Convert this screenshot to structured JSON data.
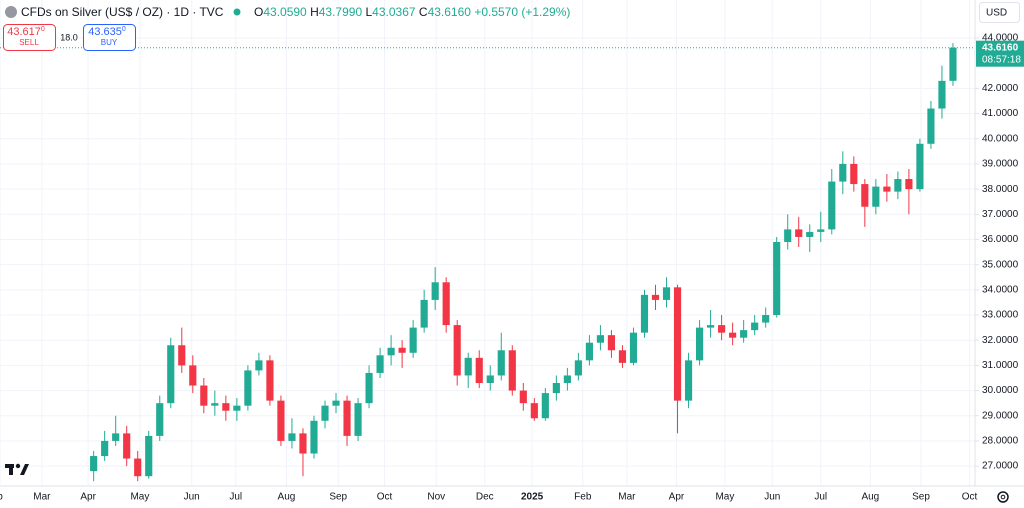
{
  "header": {
    "symbol": "CFDs on Silver (US$ / OZ) · 1D · TVC",
    "ohlc": [
      {
        "label": "O",
        "value": "43.0590"
      },
      {
        "label": "H",
        "value": "43.7990"
      },
      {
        "label": "L",
        "value": "43.0367"
      },
      {
        "label": "C",
        "value": "43.6160"
      }
    ],
    "change": "+0.5570 (+1.29%)",
    "sell": {
      "price": "43.617",
      "digit": "0",
      "label": "SELL"
    },
    "spread": "18.0",
    "buy": {
      "price": "43.635",
      "digit": "0",
      "label": "BUY"
    },
    "currency": "USD"
  },
  "chart_data": {
    "type": "candlestick",
    "up_color": "#22ab94",
    "down_color": "#f23645",
    "grid": true,
    "xlim": [
      -8.5,
      80
    ],
    "ylim": [
      26.21,
      45.51
    ],
    "xticks": [
      {
        "value": -8.5,
        "label": "b"
      },
      {
        "value": -4.7,
        "label": "Mar"
      },
      {
        "value": -0.5,
        "label": "Apr"
      },
      {
        "value": 4.2,
        "label": "May"
      },
      {
        "value": 8.9,
        "label": "Jun"
      },
      {
        "value": 12.9,
        "label": "Jul"
      },
      {
        "value": 17.5,
        "label": "Aug"
      },
      {
        "value": 22.2,
        "label": "Sep"
      },
      {
        "value": 26.4,
        "label": "Oct"
      },
      {
        "value": 31.1,
        "label": "Nov"
      },
      {
        "value": 35.5,
        "label": "Dec"
      },
      {
        "value": 39.8,
        "label": "2025"
      },
      {
        "value": 44.4,
        "label": "Feb"
      },
      {
        "value": 48.4,
        "label": "Mar"
      },
      {
        "value": 52.9,
        "label": "Apr"
      },
      {
        "value": 57.3,
        "label": "May"
      },
      {
        "value": 61.6,
        "label": "Jun"
      },
      {
        "value": 66,
        "label": "Jul"
      },
      {
        "value": 70.5,
        "label": "Aug"
      },
      {
        "value": 75.1,
        "label": "Sep"
      },
      {
        "value": 79.5,
        "label": "Oct"
      }
    ],
    "yticks": [
      {
        "value": 27,
        "label": "27.0000"
      },
      {
        "value": 28,
        "label": "28.0000"
      },
      {
        "value": 29,
        "label": "29.0000"
      },
      {
        "value": 30,
        "label": "30.0000"
      },
      {
        "value": 31,
        "label": "31.0000"
      },
      {
        "value": 32,
        "label": "32.0000"
      },
      {
        "value": 33,
        "label": "33.0000"
      },
      {
        "value": 34,
        "label": "34.0000"
      },
      {
        "value": 35,
        "label": "35.0000"
      },
      {
        "value": 36,
        "label": "36.0000"
      },
      {
        "value": 37,
        "label": "37.0000"
      },
      {
        "value": 38,
        "label": "38.0000"
      },
      {
        "value": 39,
        "label": "39.0000"
      },
      {
        "value": 40,
        "label": "40.0000"
      },
      {
        "value": 41,
        "label": "41.0000"
      },
      {
        "value": 42,
        "label": "42.0000"
      },
      {
        "value": 44,
        "label": "44.0000"
      }
    ],
    "last_price": {
      "value": 43.616,
      "label": "43.6160"
    },
    "countdown": "08:57:18",
    "open": [
      26.8,
      27.4,
      28.0,
      28.3,
      27.3,
      26.6,
      28.2,
      29.5,
      31.8,
      31.0,
      30.2,
      29.4,
      29.5,
      29.2,
      29.4,
      30.8,
      31.2,
      29.6,
      28.0,
      28.3,
      27.5,
      28.8,
      29.4,
      29.6,
      28.2,
      29.5,
      30.7,
      31.4,
      31.7,
      31.5,
      32.5,
      33.6,
      34.3,
      32.6,
      30.6,
      31.3,
      30.3,
      30.6,
      31.6,
      30.0,
      29.5,
      28.9,
      29.9,
      30.3,
      30.6,
      31.2,
      31.9,
      32.2,
      31.6,
      31.1,
      32.3,
      33.8,
      33.6,
      34.1,
      29.6,
      31.2,
      32.5,
      32.6,
      32.3,
      32.1,
      32.4,
      32.7,
      33.0,
      35.9,
      36.4,
      36.1,
      36.3,
      36.4,
      38.3,
      39.0,
      38.2,
      37.3,
      38.1,
      37.9,
      38.4,
      38.0,
      39.8,
      41.2,
      42.3
    ],
    "high": [
      27.6,
      28.4,
      29.0,
      28.6,
      27.6,
      28.4,
      29.8,
      32.1,
      32.5,
      31.4,
      30.5,
      30.0,
      29.8,
      29.7,
      31.0,
      31.5,
      31.4,
      29.8,
      28.9,
      28.5,
      29.0,
      29.6,
      29.9,
      29.8,
      29.7,
      31.0,
      31.7,
      32.2,
      32.0,
      32.8,
      34.0,
      34.9,
      34.5,
      32.8,
      31.5,
      31.6,
      31.0,
      32.3,
      31.8,
      30.3,
      29.7,
      30.1,
      30.6,
      30.9,
      31.5,
      32.2,
      32.6,
      32.4,
      31.8,
      32.5,
      34.0,
      34.2,
      34.5,
      34.2,
      31.5,
      32.8,
      33.2,
      33.0,
      32.7,
      32.8,
      33.0,
      33.3,
      36.1,
      37.0,
      36.9,
      36.6,
      37.1,
      38.8,
      39.5,
      39.3,
      38.4,
      38.4,
      38.6,
      38.7,
      38.8,
      40.0,
      41.5,
      42.9,
      43.799
    ],
    "low": [
      26.4,
      27.2,
      27.8,
      27.0,
      26.4,
      26.5,
      28.0,
      29.3,
      30.7,
      29.9,
      29.1,
      29.0,
      28.8,
      28.8,
      29.2,
      30.6,
      29.4,
      27.8,
      27.7,
      26.6,
      27.3,
      28.5,
      29.1,
      27.8,
      28.0,
      29.3,
      30.5,
      31.0,
      30.9,
      31.3,
      32.3,
      33.2,
      32.3,
      30.2,
      30.1,
      30.1,
      30.0,
      30.4,
      29.8,
      29.2,
      28.8,
      28.8,
      29.6,
      30.0,
      30.4,
      31.0,
      31.6,
      31.3,
      30.9,
      31.0,
      32.1,
      33.2,
      33.3,
      28.3,
      29.3,
      31.0,
      32.1,
      32.0,
      31.8,
      31.9,
      32.2,
      32.5,
      32.9,
      35.6,
      35.7,
      35.5,
      35.9,
      36.2,
      37.8,
      37.9,
      36.5,
      37.0,
      37.5,
      37.6,
      37.0,
      37.9,
      39.6,
      40.8,
      42.1
    ],
    "close": [
      27.4,
      28.0,
      28.3,
      27.3,
      26.6,
      28.2,
      29.5,
      31.8,
      31.0,
      30.2,
      29.4,
      29.5,
      29.2,
      29.4,
      30.8,
      31.2,
      29.6,
      28.0,
      28.3,
      27.5,
      28.8,
      29.4,
      29.6,
      28.2,
      29.5,
      30.7,
      31.4,
      31.7,
      31.5,
      32.5,
      33.6,
      34.3,
      32.6,
      30.6,
      31.3,
      30.3,
      30.6,
      31.6,
      30.0,
      29.5,
      28.9,
      29.9,
      30.3,
      30.6,
      31.2,
      31.9,
      32.2,
      31.6,
      31.1,
      32.3,
      33.8,
      33.6,
      34.1,
      29.6,
      31.2,
      32.5,
      32.6,
      32.3,
      32.1,
      32.4,
      32.7,
      33.0,
      35.9,
      36.4,
      36.1,
      36.3,
      36.4,
      38.3,
      39.0,
      38.2,
      37.3,
      38.1,
      37.9,
      38.4,
      38.0,
      39.8,
      41.2,
      42.3,
      43.616
    ]
  }
}
